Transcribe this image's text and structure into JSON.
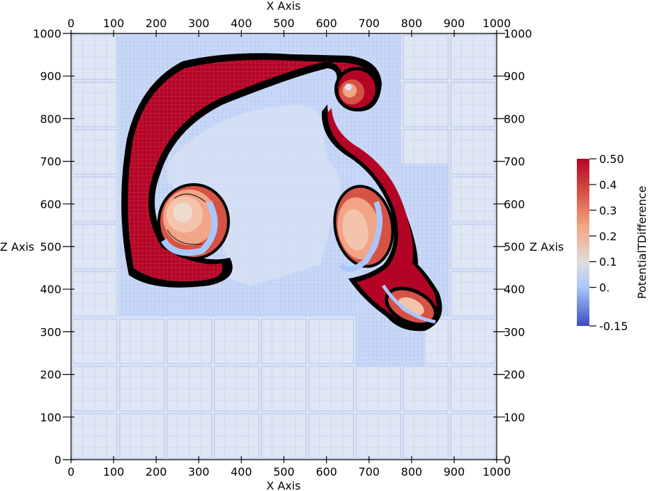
{
  "chart_data": {
    "type": "heatmap",
    "x_axis_label": "X Axis",
    "z_axis_label": "Z Axis",
    "x_range": [
      0,
      1000
    ],
    "z_range": [
      0,
      1000
    ],
    "x_ticks": [
      "0",
      "100",
      "200",
      "300",
      "400",
      "500",
      "600",
      "700",
      "800",
      "900",
      "1000"
    ],
    "z_ticks": [
      "0",
      "100",
      "200",
      "300",
      "400",
      "500",
      "600",
      "700",
      "800",
      "900",
      "1000"
    ],
    "colorbar": {
      "title": "PotentialTDifference",
      "range": [
        -0.15,
        0.5
      ],
      "ticks": [
        {
          "value": 0.5,
          "label": "0.50"
        },
        {
          "value": 0.4,
          "label": "0.4"
        },
        {
          "value": 0.3,
          "label": "0.3"
        },
        {
          "value": 0.2,
          "label": "0.2"
        },
        {
          "value": 0.1,
          "label": "0.1"
        },
        {
          "value": 0.0,
          "label": "0."
        },
        {
          "value": -0.15,
          "label": "-0.15"
        }
      ],
      "colors": {
        "high": "#b40426",
        "mid": "#dddddd",
        "low": "#3b4cc0"
      }
    },
    "background_value": 0.0,
    "features": [
      {
        "name": "left plume arm",
        "value": 0.5
      },
      {
        "name": "left vortex",
        "value": 0.25
      },
      {
        "name": "right plume arm",
        "value": 0.45
      },
      {
        "name": "right vortex",
        "value": 0.25
      },
      {
        "name": "top curl",
        "value": 0.3
      }
    ],
    "grid": "adaptive-mesh"
  }
}
